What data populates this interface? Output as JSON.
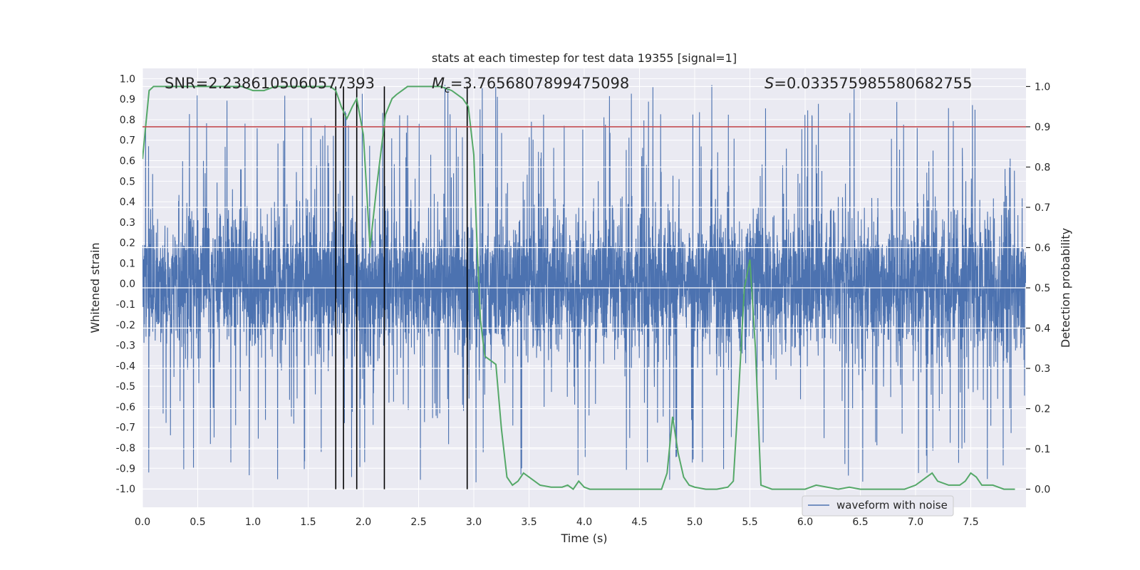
{
  "chart_data": {
    "type": "line",
    "title": "stats at each timestep for test data 19355 [signal=1]",
    "xlabel": "Time (s)",
    "ylabel_left": "Whitened strain",
    "ylabel_right": "Detection probability",
    "xlim": [
      0.0,
      8.0
    ],
    "ylim_left": [
      -1.09,
      1.05
    ],
    "ylim_right": [
      -0.045,
      1.045
    ],
    "x_ticks": [
      "0.0",
      "0.5",
      "1.0",
      "1.5",
      "2.0",
      "2.5",
      "3.0",
      "3.5",
      "4.0",
      "4.5",
      "5.0",
      "5.5",
      "6.0",
      "6.5",
      "7.0",
      "7.5"
    ],
    "x_tick_values": [
      0.0,
      0.5,
      1.0,
      1.5,
      2.0,
      2.5,
      3.0,
      3.5,
      4.0,
      4.5,
      5.0,
      5.5,
      6.0,
      6.5,
      7.0,
      7.5
    ],
    "y_left_ticks": [
      "1.0",
      "0.9",
      "0.8",
      "0.7",
      "0.6",
      "0.5",
      "0.4",
      "0.3",
      "0.2",
      "0.1",
      "0.0",
      "-0.1",
      "-0.2",
      "-0.3",
      "-0.4",
      "-0.5",
      "-0.6",
      "-0.7",
      "-0.8",
      "-0.9",
      "-1.0"
    ],
    "y_left_tick_values": [
      1.0,
      0.9,
      0.8,
      0.7,
      0.6,
      0.5,
      0.4,
      0.3,
      0.2,
      0.1,
      0.0,
      -0.1,
      -0.2,
      -0.3,
      -0.4,
      -0.5,
      -0.6,
      -0.7,
      -0.8,
      -0.9,
      -1.0
    ],
    "y_right_ticks": [
      "1.0",
      "0.9",
      "0.8",
      "0.7",
      "0.6",
      "0.5",
      "0.4",
      "0.3",
      "0.2",
      "0.1",
      "0.0"
    ],
    "y_right_tick_values": [
      1.0,
      0.9,
      0.8,
      0.7,
      0.6,
      0.5,
      0.4,
      0.3,
      0.2,
      0.1,
      0.0
    ],
    "annotations": {
      "snr": "SNR=2.2386105060577393",
      "mc_symbol": "M",
      "mc_sub": "c",
      "mc_value": "=3.7656807899475098",
      "s_symbol": "S",
      "s_value": "=0.033575985580682755"
    },
    "threshold": {
      "value": 0.9,
      "axis": "right",
      "color": "#c44e52"
    },
    "vertical_lines": [
      1.75,
      1.82,
      1.94,
      2.19,
      2.94
    ],
    "series": [
      {
        "name": "waveform with noise",
        "axis": "left",
        "color": "#4c72b0",
        "kind": "noise",
        "duration": 8.0,
        "typical_abs_max": 0.45,
        "peak_abs_max": 0.97,
        "noise_seed": 19355
      },
      {
        "name": "detection probability",
        "axis": "right",
        "color": "#55a868",
        "x": [
          0.0,
          0.06,
          0.1,
          0.2,
          0.4,
          0.6,
          0.8,
          0.9,
          1.0,
          1.1,
          1.2,
          1.4,
          1.6,
          1.7,
          1.75,
          1.8,
          1.85,
          1.9,
          1.94,
          2.0,
          2.06,
          2.12,
          2.2,
          2.26,
          2.3,
          2.4,
          2.5,
          2.6,
          2.7,
          2.8,
          2.85,
          2.9,
          2.95,
          3.0,
          3.03,
          3.06,
          3.1,
          3.15,
          3.2,
          3.25,
          3.3,
          3.35,
          3.4,
          3.45,
          3.5,
          3.6,
          3.7,
          3.8,
          3.85,
          3.9,
          3.95,
          4.0,
          4.05,
          4.1,
          4.2,
          4.4,
          4.6,
          4.7,
          4.75,
          4.8,
          4.85,
          4.9,
          4.95,
          5.0,
          5.1,
          5.2,
          5.3,
          5.35,
          5.4,
          5.45,
          5.5,
          5.55,
          5.6,
          5.7,
          5.8,
          6.0,
          6.1,
          6.2,
          6.3,
          6.4,
          6.5,
          6.6,
          6.8,
          6.9,
          7.0,
          7.05,
          7.1,
          7.15,
          7.2,
          7.3,
          7.4,
          7.45,
          7.5,
          7.55,
          7.6,
          7.7,
          7.8,
          7.9
        ],
        "y": [
          0.82,
          0.99,
          1.0,
          1.0,
          1.0,
          1.0,
          1.0,
          1.0,
          0.99,
          0.99,
          1.0,
          1.0,
          1.0,
          1.0,
          0.99,
          0.95,
          0.92,
          0.95,
          0.97,
          0.88,
          0.6,
          0.75,
          0.93,
          0.97,
          0.98,
          1.0,
          1.0,
          1.0,
          1.0,
          0.99,
          0.98,
          0.97,
          0.95,
          0.83,
          0.6,
          0.42,
          0.33,
          0.32,
          0.31,
          0.15,
          0.03,
          0.01,
          0.02,
          0.04,
          0.03,
          0.01,
          0.005,
          0.005,
          0.01,
          0.0,
          0.02,
          0.005,
          0.0,
          0.0,
          0.0,
          0.0,
          0.0,
          0.0,
          0.04,
          0.18,
          0.09,
          0.03,
          0.01,
          0.005,
          0.0,
          0.0,
          0.005,
          0.02,
          0.25,
          0.5,
          0.57,
          0.35,
          0.01,
          0.0,
          0.0,
          0.0,
          0.01,
          0.005,
          0.0,
          0.005,
          0.0,
          0.0,
          0.0,
          0.0,
          0.01,
          0.02,
          0.03,
          0.04,
          0.02,
          0.01,
          0.01,
          0.02,
          0.04,
          0.03,
          0.01,
          0.01,
          0.0,
          0.0
        ]
      }
    ],
    "legend": {
      "entries": [
        "waveform with noise"
      ],
      "placement": "bottom-right"
    }
  }
}
